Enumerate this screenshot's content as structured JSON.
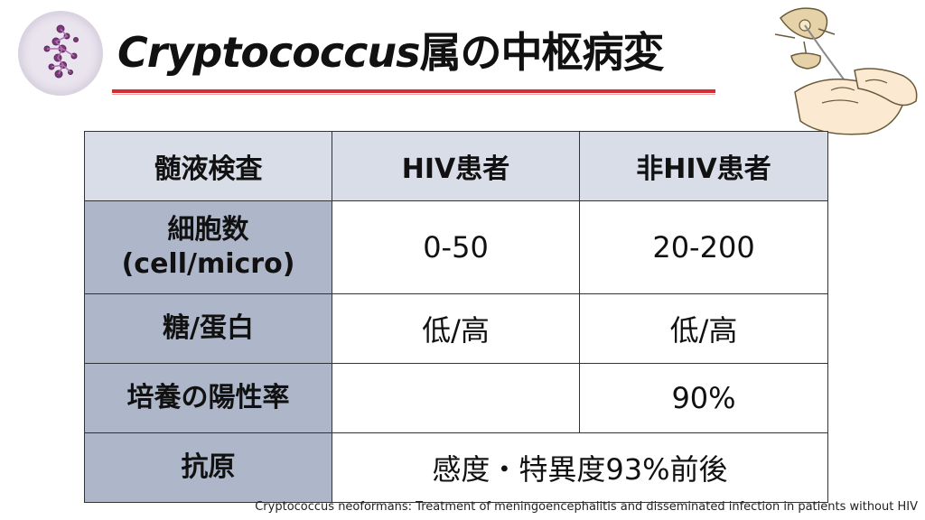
{
  "title": {
    "latin": "Cryptococcus",
    "jp": "属の中枢病変"
  },
  "table": {
    "headers": [
      "髄液検査",
      "HIV患者",
      "非HIV患者"
    ],
    "rows": [
      {
        "label_line1": "細胞数",
        "label_line2": "(cell/micro)",
        "hiv": "0-50",
        "non_hiv": "20-200"
      },
      {
        "label": "糖/蛋白",
        "hiv": "低/高",
        "non_hiv": "低/高"
      },
      {
        "label": "培養の陽性率",
        "hiv": "",
        "non_hiv": "90%"
      },
      {
        "label": "抗原",
        "merged": "感度・特異度93%前後"
      }
    ]
  },
  "footnote": "Cryptococcus neoformans: Treatment of meningoencephalitis and disseminated infection in patients without HIV",
  "colors": {
    "underline": "#d62d34",
    "header_bg": "#d9dde8",
    "row_header_bg": "#aeb6c9"
  },
  "icons": {
    "logo": "microscope-cells-icon",
    "illustration": "lumbar-puncture-illustration"
  }
}
